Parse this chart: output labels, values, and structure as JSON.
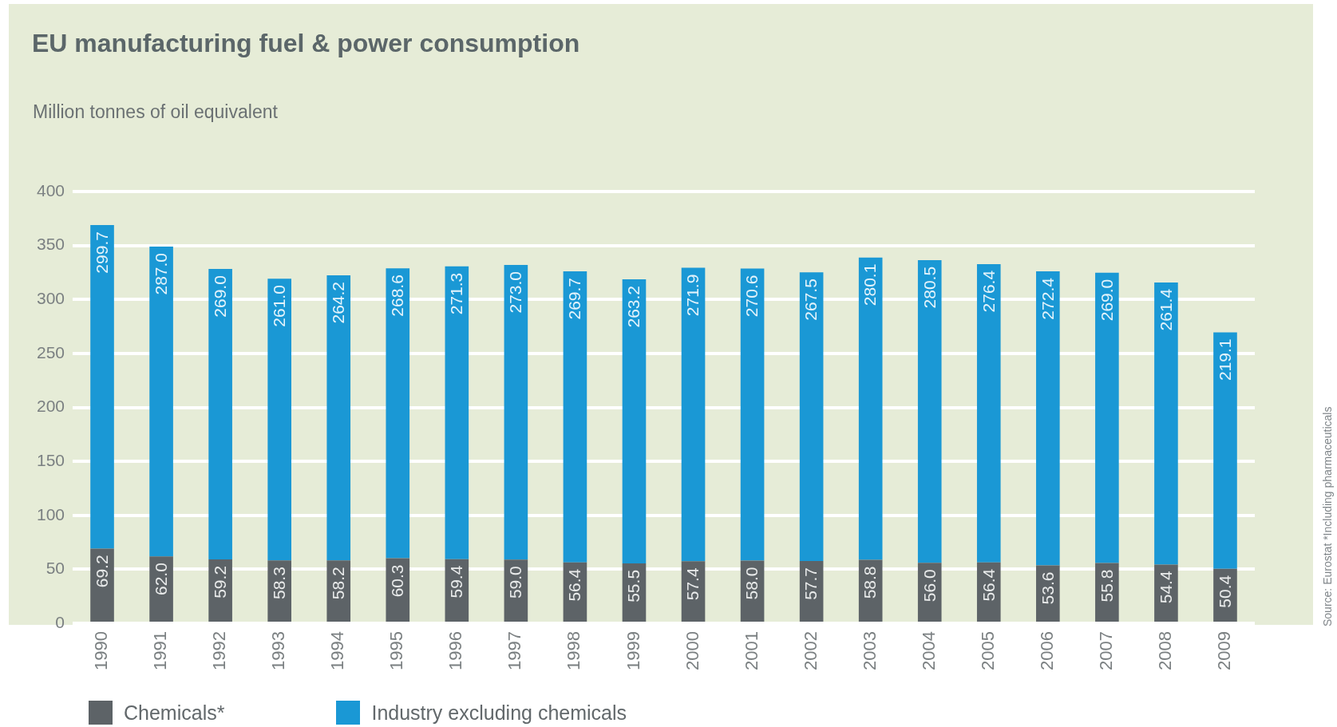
{
  "chart_data": {
    "type": "bar",
    "title": "EU manufacturing fuel & power consumption",
    "subtitle": "Million tonnes of oil equivalent",
    "annotations": [
      "Source: Eurostat *Including pharmaceuticals"
    ],
    "categories": [
      "1990",
      "1991",
      "1992",
      "1993",
      "1994",
      "1995",
      "1996",
      "1997",
      "1998",
      "1999",
      "2000",
      "2001",
      "2002",
      "2003",
      "2004",
      "2005",
      "2006",
      "2007",
      "2008",
      "2009"
    ],
    "series": [
      {
        "name": "Chemicals*",
        "color": "#5d6367",
        "values": [
          69.2,
          62.0,
          59.2,
          58.3,
          58.2,
          60.3,
          59.4,
          59.0,
          56.4,
          55.5,
          57.4,
          58.0,
          57.7,
          58.8,
          56.0,
          56.4,
          53.6,
          55.8,
          54.4,
          50.4
        ],
        "value_labels": [
          "69.2",
          "62.0",
          "59.2",
          "58.3",
          "58.2",
          "60.3",
          "59.4",
          "59.0",
          "56.4",
          "55.5",
          "57.4",
          "58.0",
          "57.7",
          "58.8",
          "56.0",
          "56.4",
          "53.6",
          "55.8",
          "54.4",
          "50.4"
        ]
      },
      {
        "name": "Industry excluding chemicals",
        "color": "#1a98d5",
        "values": [
          299.7,
          287.0,
          269.0,
          261.0,
          264.2,
          268.6,
          271.3,
          273.0,
          269.7,
          263.2,
          271.9,
          270.6,
          267.5,
          280.1,
          280.5,
          276.4,
          272.4,
          269.0,
          261.4,
          219.1
        ],
        "value_labels": [
          "299.7",
          "287.0",
          "269.0",
          "261.0",
          "264.2",
          "268.6",
          "271.3",
          "273.0",
          "269.7",
          "263.2",
          "271.9",
          "270.6",
          "267.5",
          "280.1",
          "280.5",
          "276.4",
          "272.4",
          "269.0",
          "261.4",
          "219.1"
        ]
      }
    ],
    "stacked": true,
    "ylim": [
      0,
      400
    ],
    "yticks": [
      0,
      50,
      100,
      150,
      200,
      250,
      300,
      350,
      400
    ],
    "grid": "y",
    "legend": "bottom left"
  }
}
